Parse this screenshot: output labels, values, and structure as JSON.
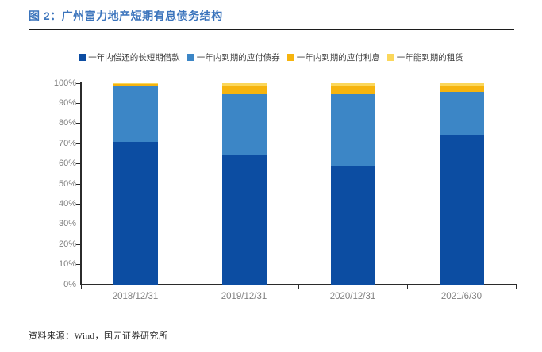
{
  "header": {
    "title": "图 2：广州富力地产短期有息债务结构"
  },
  "footer": {
    "source": "资料来源：Wind，国元证券研究所"
  },
  "colors": {
    "title_text": "#3b74bc",
    "axis_line": "#2b2b2b",
    "axis_text": "#7f7f7f",
    "legend_text": "#404040",
    "series": [
      "#0c4da2",
      "#3c86c6",
      "#f6b40e",
      "#fbd75b"
    ]
  },
  "chart_data": {
    "type": "bar",
    "stacked": true,
    "percent_stacked": true,
    "title": "广州富力地产短期有息债务结构",
    "categories": [
      "2018/12/31",
      "2019/12/31",
      "2020/12/31",
      "2021/6/30"
    ],
    "series": [
      {
        "name": "一年内偿还的长短期借款",
        "color": "#0c4da2",
        "values": [
          71,
          64,
          59,
          74.5
        ]
      },
      {
        "name": "一年内到期的应付债券",
        "color": "#3c86c6",
        "values": [
          28,
          31,
          36,
          21
        ]
      },
      {
        "name": "一年内到期的应付利息",
        "color": "#f6b40e",
        "values": [
          0.7,
          4,
          4,
          3.2
        ]
      },
      {
        "name": "一年能到期的租赁",
        "color": "#fbd75b",
        "values": [
          0.3,
          1,
          1,
          1.3
        ]
      }
    ],
    "xlabel": "",
    "ylabel": "",
    "ylim": [
      0,
      100
    ],
    "y_ticks": [
      "0%",
      "10%",
      "20%",
      "30%",
      "40%",
      "50%",
      "60%",
      "70%",
      "80%",
      "90%",
      "100%"
    ],
    "grid": false,
    "legend_position": "top"
  }
}
